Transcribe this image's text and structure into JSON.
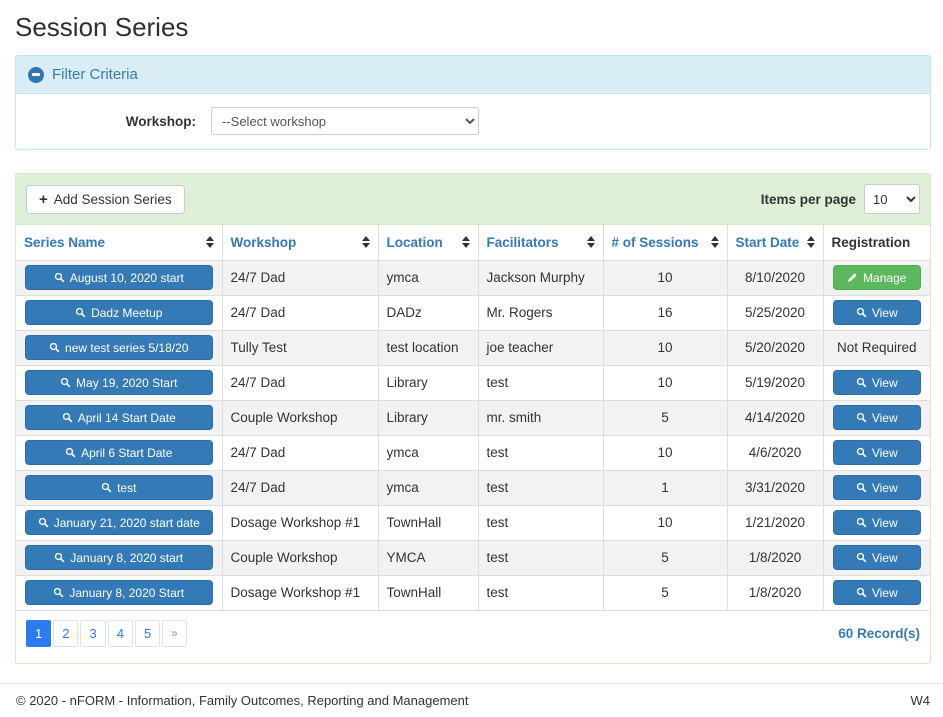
{
  "page": {
    "title": "Session Series"
  },
  "icons": {
    "plus": "+",
    "pager_next": "»"
  },
  "filter": {
    "header": "Filter Criteria",
    "workshop_label": "Workshop:",
    "workshop_selected": "--Select workshop"
  },
  "toolbar": {
    "add_button": "Add Session Series",
    "items_per_page_label": "Items per page",
    "items_per_page_value": "10"
  },
  "table": {
    "columns": [
      {
        "label": "Series Name",
        "sortable": true
      },
      {
        "label": "Workshop",
        "sortable": true
      },
      {
        "label": "Location",
        "sortable": true
      },
      {
        "label": "Facilitators",
        "sortable": true
      },
      {
        "label": "# of Sessions",
        "sortable": true
      },
      {
        "label": "Start Date",
        "sortable": true
      },
      {
        "label": "Registration",
        "sortable": false
      }
    ],
    "rows": [
      {
        "series_name": "August 10, 2020 start",
        "workshop": "24/7 Dad",
        "location": "ymca",
        "facilitators": "Jackson Murphy",
        "sessions": "10",
        "start_date": "8/10/2020",
        "registration": {
          "type": "manage",
          "label": "Manage"
        }
      },
      {
        "series_name": "Dadz Meetup",
        "workshop": "24/7 Dad",
        "location": "DADz",
        "facilitators": "Mr. Rogers",
        "sessions": "16",
        "start_date": "5/25/2020",
        "registration": {
          "type": "view",
          "label": "View"
        }
      },
      {
        "series_name": "new test series 5/18/20",
        "workshop": "Tully Test",
        "location": "test location",
        "facilitators": "joe teacher",
        "sessions": "10",
        "start_date": "5/20/2020",
        "registration": {
          "type": "text",
          "label": "Not Required"
        }
      },
      {
        "series_name": "May 19, 2020 Start",
        "workshop": "24/7 Dad",
        "location": "Library",
        "facilitators": "test",
        "sessions": "10",
        "start_date": "5/19/2020",
        "registration": {
          "type": "view",
          "label": "View"
        }
      },
      {
        "series_name": "April 14 Start Date",
        "workshop": "Couple Workshop",
        "location": "Library",
        "facilitators": "mr. smith",
        "sessions": "5",
        "start_date": "4/14/2020",
        "registration": {
          "type": "view",
          "label": "View"
        }
      },
      {
        "series_name": "April 6 Start Date",
        "workshop": "24/7 Dad",
        "location": "ymca",
        "facilitators": "test",
        "sessions": "10",
        "start_date": "4/6/2020",
        "registration": {
          "type": "view",
          "label": "View"
        }
      },
      {
        "series_name": "test",
        "workshop": "24/7 Dad",
        "location": "ymca",
        "facilitators": "test",
        "sessions": "1",
        "start_date": "3/31/2020",
        "registration": {
          "type": "view",
          "label": "View"
        }
      },
      {
        "series_name": "January 21, 2020 start date",
        "workshop": "Dosage Workshop #1",
        "location": "TownHall",
        "facilitators": "test",
        "sessions": "10",
        "start_date": "1/21/2020",
        "registration": {
          "type": "view",
          "label": "View"
        }
      },
      {
        "series_name": "January 8, 2020 start",
        "workshop": "Couple Workshop",
        "location": "YMCA",
        "facilitators": "test",
        "sessions": "5",
        "start_date": "1/8/2020",
        "registration": {
          "type": "view",
          "label": "View"
        }
      },
      {
        "series_name": "January 8, 2020 Start",
        "workshop": "Dosage Workshop #1",
        "location": "TownHall",
        "facilitators": "test",
        "sessions": "5",
        "start_date": "1/8/2020",
        "registration": {
          "type": "view",
          "label": "View"
        }
      }
    ]
  },
  "pagination": {
    "pages": [
      "1",
      "2",
      "3",
      "4",
      "5",
      "»"
    ],
    "active": "1",
    "records": "60 Record(s)"
  },
  "footer": {
    "copyright": "© 2020 - nFORM - Information, Family Outcomes, Reporting and Management",
    "version": "W4"
  }
}
